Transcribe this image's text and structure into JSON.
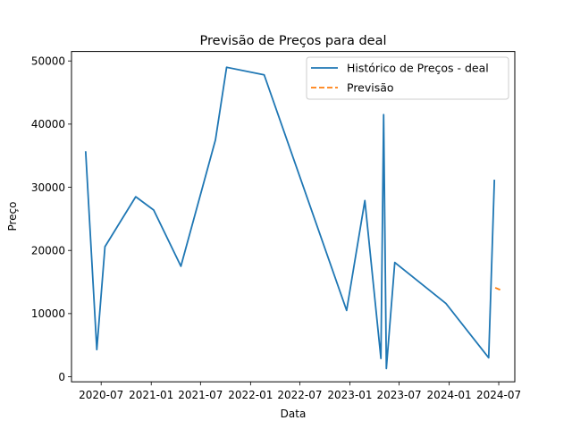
{
  "chart_data": {
    "type": "line",
    "title": "Previsão de Preços para deal",
    "xlabel": "Data",
    "ylabel": "Preço",
    "xlim": [
      "2020-03-14",
      "2024-08-29"
    ],
    "ylim": [
      -800,
      51500
    ],
    "x_ticks": [
      "2020-07-01",
      "2021-01-01",
      "2021-07-01",
      "2022-01-01",
      "2022-07-01",
      "2023-01-01",
      "2023-07-01",
      "2024-01-01",
      "2024-07-01"
    ],
    "x_tick_labels": [
      "2020-07",
      "2021-01",
      "2021-07",
      "2022-01",
      "2022-07",
      "2023-01",
      "2023-07",
      "2024-01",
      "2024-07"
    ],
    "y_ticks": [
      0,
      10000,
      20000,
      30000,
      40000,
      50000
    ],
    "y_tick_labels": [
      "0",
      "10000",
      "20000",
      "30000",
      "40000",
      "50000"
    ],
    "grid": false,
    "legend": "top-right",
    "series": [
      {
        "name": "Histórico de Preços - deal",
        "color": "#1f77b4",
        "style": "solid",
        "x": [
          "2020-05-05",
          "2020-06-15",
          "2020-07-15",
          "2020-11-05",
          "2021-01-10",
          "2021-04-20",
          "2021-08-25",
          "2021-10-05",
          "2022-02-20",
          "2022-12-20",
          "2023-02-25",
          "2023-04-25",
          "2023-05-05",
          "2023-05-15",
          "2023-06-15",
          "2023-12-20",
          "2024-05-25",
          "2024-06-15"
        ],
        "y": [
          35700,
          4300,
          20600,
          28500,
          26400,
          17500,
          37500,
          49000,
          47800,
          10500,
          27900,
          2900,
          41500,
          1300,
          18100,
          11600,
          3000,
          31200
        ]
      },
      {
        "name": "Previsão",
        "color": "#ff7f0e",
        "style": "dashed",
        "x": [
          "2024-06-18",
          "2024-07-10"
        ],
        "y": [
          14100,
          13700
        ]
      }
    ]
  }
}
